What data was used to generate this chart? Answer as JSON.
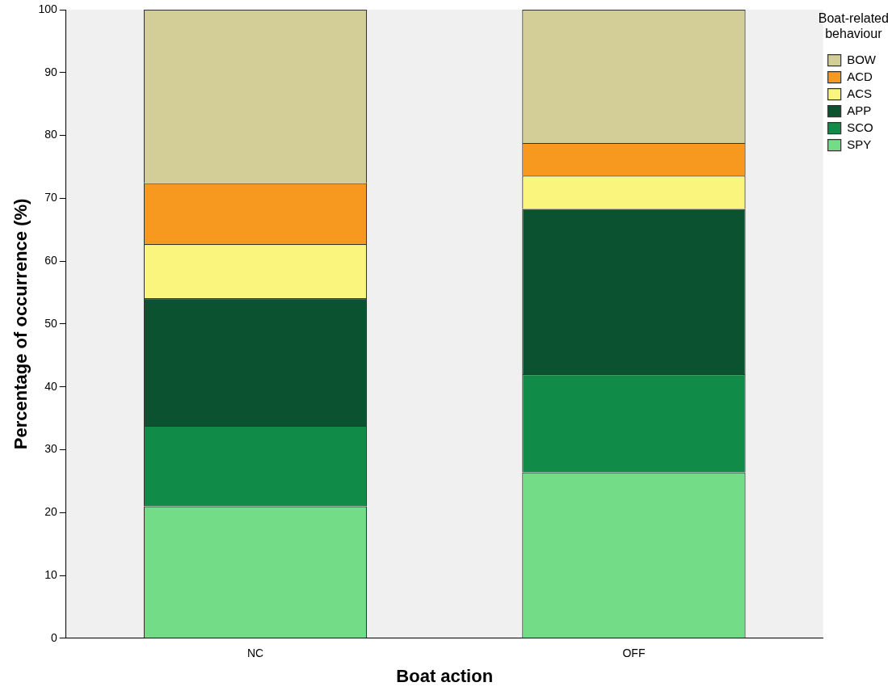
{
  "chart_data": {
    "type": "bar",
    "stacked": true,
    "xlabel": "Boat action",
    "ylabel": "Percentage of occurrence (%)",
    "legend_title": "Boat-related behaviour",
    "legend": "top right",
    "categories": [
      "NC",
      "OFF"
    ],
    "series": [
      {
        "name": "SPY",
        "color": "#72dc87",
        "values": [
          21.0,
          26.4
        ]
      },
      {
        "name": "SCO",
        "color": "#108c48",
        "values": [
          12.8,
          15.6
        ]
      },
      {
        "name": "APP",
        "color": "#0a5230",
        "values": [
          20.3,
          26.3
        ]
      },
      {
        "name": "ACS",
        "color": "#f9f57d",
        "values": [
          8.6,
          5.3
        ]
      },
      {
        "name": "ACD",
        "color": "#f7981f",
        "values": [
          9.7,
          5.2
        ]
      },
      {
        "name": "BOW",
        "color": "#d3cd98",
        "values": [
          27.6,
          21.2
        ]
      }
    ],
    "ylim": [
      0,
      100
    ],
    "yticks": [
      0,
      10,
      20,
      30,
      40,
      50,
      60,
      70,
      80,
      90,
      100
    ],
    "grid": false
  }
}
